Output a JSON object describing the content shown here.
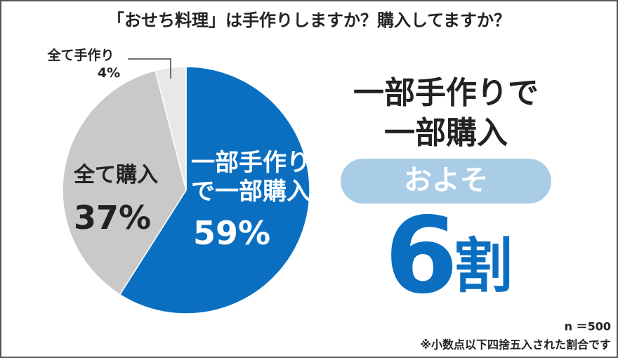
{
  "chart_data": {
    "type": "pie",
    "title": "「おせち料理」は手作りしますか？購入してますか？",
    "categories": [
      "一部手作りで一部購入",
      "全て購入",
      "全て手作り"
    ],
    "values": [
      59,
      37,
      4
    ],
    "value_labels": [
      "59%",
      "37%",
      "4%"
    ],
    "colors": [
      "#0a6fc1",
      "#c9c9c9",
      "#e8e8e8"
    ],
    "headline_lines": [
      "一部手作りで",
      "一部購入"
    ],
    "badge": "およそ",
    "highlight_number": "6",
    "highlight_unit": "割",
    "sample_size": "n ＝500",
    "footnote": "※小数点以下四捨五入された割合です"
  }
}
